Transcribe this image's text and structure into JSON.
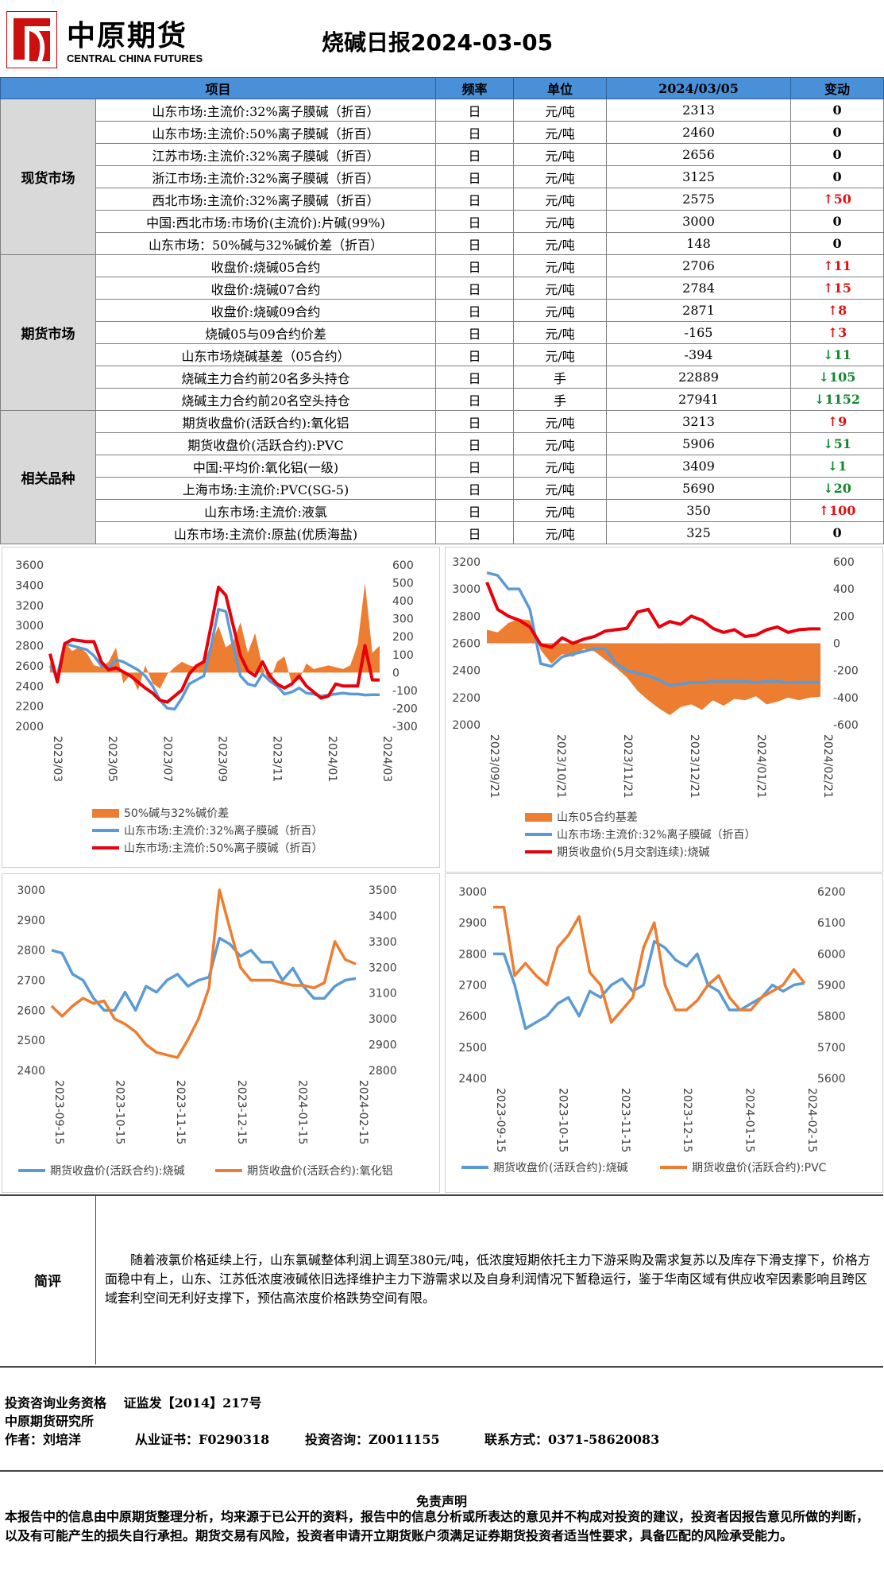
{
  "header": {
    "logo_cn": "中原期货",
    "logo_en": "CENTRAL CHINA FUTURES",
    "title": "烧碱日报2024-03-05"
  },
  "table": {
    "columns": [
      "项目",
      "频率",
      "单位",
      "2024/03/05",
      "变动"
    ],
    "sections": [
      {
        "name": "现货市场",
        "rows": [
          {
            "item": "山东市场:主流价:32%离子膜碱（折百）",
            "freq": "日",
            "unit": "元/吨",
            "value": "2313",
            "change": "0",
            "dir": "zero"
          },
          {
            "item": "山东市场:主流价:50%离子膜碱（折百）",
            "freq": "日",
            "unit": "元/吨",
            "value": "2460",
            "change": "0",
            "dir": "zero"
          },
          {
            "item": "江苏市场:主流价:32%离子膜碱（折百）",
            "freq": "日",
            "unit": "元/吨",
            "value": "2656",
            "change": "0",
            "dir": "zero"
          },
          {
            "item": "浙江市场:主流价:32%离子膜碱（折百）",
            "freq": "日",
            "unit": "元/吨",
            "value": "3125",
            "change": "0",
            "dir": "zero"
          },
          {
            "item": "西北市场:主流价:32%离子膜碱（折百）",
            "freq": "日",
            "unit": "元/吨",
            "value": "2575",
            "change": "↑50",
            "dir": "up"
          },
          {
            "item": "中国:西北市场:市场价(主流价):片碱(99%)",
            "freq": "日",
            "unit": "元/吨",
            "value": "3000",
            "change": "0",
            "dir": "zero"
          },
          {
            "item": "山东市场：50%碱与32%碱价差（折百）",
            "freq": "日",
            "unit": "元/吨",
            "value": "148",
            "change": "0",
            "dir": "zero"
          }
        ]
      },
      {
        "name": "期货市场",
        "rows": [
          {
            "item": "收盘价:烧碱05合约",
            "freq": "日",
            "unit": "元/吨",
            "value": "2706",
            "change": "↑11",
            "dir": "up"
          },
          {
            "item": "收盘价:烧碱07合约",
            "freq": "日",
            "unit": "元/吨",
            "value": "2784",
            "change": "↑15",
            "dir": "up"
          },
          {
            "item": "收盘价:烧碱09合约",
            "freq": "日",
            "unit": "元/吨",
            "value": "2871",
            "change": "↑8",
            "dir": "up"
          },
          {
            "item": "烧碱05与09合约价差",
            "freq": "日",
            "unit": "元/吨",
            "value": "-165",
            "change": "↑3",
            "dir": "up"
          },
          {
            "item": "山东市场烧碱基差（05合约）",
            "freq": "日",
            "unit": "元/吨",
            "value": "-394",
            "change": "↓11",
            "dir": "down"
          },
          {
            "item": "烧碱主力合约前20名多头持仓",
            "freq": "日",
            "unit": "手",
            "value": "22889",
            "change": "↓105",
            "dir": "down"
          },
          {
            "item": "烧碱主力合约前20名空头持仓",
            "freq": "日",
            "unit": "手",
            "value": "27941",
            "change": "↓1152",
            "dir": "down"
          }
        ]
      },
      {
        "name": "相关品种",
        "rows": [
          {
            "item": "期货收盘价(活跃合约):氧化铝",
            "freq": "日",
            "unit": "元/吨",
            "value": "3213",
            "change": "↑9",
            "dir": "up"
          },
          {
            "item": "期货收盘价(活跃合约):PVC",
            "freq": "日",
            "unit": "元/吨",
            "value": "5906",
            "change": "↓51",
            "dir": "down"
          },
          {
            "item": "中国:平均价:氧化铝(一级)",
            "freq": "日",
            "unit": "元/吨",
            "value": "3409",
            "change": "↓1",
            "dir": "down"
          },
          {
            "item": "上海市场:主流价:PVC(SG-5)",
            "freq": "日",
            "unit": "元/吨",
            "value": "5690",
            "change": "↓20",
            "dir": "down"
          },
          {
            "item": "山东市场:主流价:液氯",
            "freq": "日",
            "unit": "元/吨",
            "value": "350",
            "change": "↑100",
            "dir": "up"
          },
          {
            "item": "山东市场:主流价:原盐(优质海盐)",
            "freq": "日",
            "unit": "元/吨",
            "value": "325",
            "change": "0",
            "dir": "zero"
          }
        ]
      }
    ]
  },
  "colors": {
    "orange": "#ed7d31",
    "blue": "#5b9bd5",
    "red": "#e8000b",
    "up": "#e01010",
    "down": "#13882e",
    "header_blue": "#4a90d9"
  },
  "chart_data": [
    {
      "type": "area",
      "x_ticks": [
        "2023/03",
        "2023/05",
        "2023/07",
        "2023/09",
        "2023/11",
        "2024/01",
        "2024/03"
      ],
      "y_left": {
        "lim": [
          2000,
          3600
        ],
        "ticks": [
          "3600",
          "3400",
          "3200",
          "3000",
          "2800",
          "2600",
          "2400",
          "2200",
          "2000"
        ]
      },
      "y_right": {
        "lim": [
          -300,
          600
        ],
        "ticks": [
          "600",
          "500",
          "400",
          "300",
          "200",
          "100",
          "0",
          "-100",
          "-200",
          "-300"
        ]
      },
      "series": [
        {
          "name": "50%碱与32%碱价差",
          "type": "area",
          "axis": "right",
          "color": "#ed7d31",
          "values": [
            60,
            -30,
            170,
            120,
            140,
            110,
            40,
            30,
            60,
            140,
            -60,
            -10,
            -100,
            40,
            -60,
            -90,
            -10,
            30,
            60,
            40,
            30,
            60,
            160,
            260,
            140,
            170,
            280,
            110,
            220,
            30,
            -50,
            60,
            90,
            -60,
            -40,
            50,
            20,
            30,
            40,
            30,
            20,
            40,
            160,
            500,
            110,
            150
          ]
        },
        {
          "name": "山东市场:主流价:32%离子膜碱（折百）",
          "type": "line",
          "axis": "left",
          "color": "#5b9bd5",
          "values": [
            2600,
            2500,
            2820,
            2800,
            2780,
            2760,
            2700,
            2600,
            2580,
            2660,
            2640,
            2600,
            2560,
            2500,
            2400,
            2260,
            2180,
            2170,
            2280,
            2420,
            2460,
            2500,
            2800,
            3160,
            3140,
            2800,
            2500,
            2420,
            2400,
            2520,
            2450,
            2400,
            2320,
            2340,
            2380,
            2330,
            2320,
            2300,
            2310,
            2320,
            2330,
            2320,
            2320,
            2310,
            2313,
            2313
          ]
        },
        {
          "name": "山东市场:主流价:50%离子膜碱（折百）",
          "type": "line",
          "axis": "left",
          "color": "#e8000b",
          "values": [
            2720,
            2440,
            2820,
            2860,
            2850,
            2840,
            2840,
            2640,
            2560,
            2580,
            2540,
            2500,
            2440,
            2380,
            2330,
            2260,
            2240,
            2300,
            2360,
            2520,
            2600,
            2640,
            3000,
            3380,
            3300,
            3000,
            2700,
            2550,
            2500,
            2640,
            2500,
            2420,
            2380,
            2420,
            2500,
            2400,
            2340,
            2280,
            2300,
            2420,
            2400,
            2400,
            2400,
            2800,
            2460,
            2460
          ]
        }
      ]
    },
    {
      "type": "area",
      "x_ticks": [
        "2023/09/21",
        "2023/10/21",
        "2023/11/21",
        "2023/12/21",
        "2024/01/21",
        "2024/02/21"
      ],
      "y_left": {
        "lim": [
          2000,
          3200
        ],
        "ticks": [
          "3200",
          "3000",
          "2800",
          "2600",
          "2400",
          "2200",
          "2000"
        ]
      },
      "y_right": {
        "lim": [
          -600,
          600
        ],
        "ticks": [
          "600",
          "400",
          "200",
          "0",
          "-200",
          "-400",
          "-600"
        ]
      },
      "series": [
        {
          "name": "山东05合约基差",
          "type": "area",
          "axis": "right",
          "color": "#ed7d31",
          "values": [
            100,
            80,
            150,
            180,
            170,
            -50,
            -150,
            -80,
            -100,
            -40,
            -60,
            -120,
            -180,
            -250,
            -350,
            -420,
            -480,
            -530,
            -470,
            -450,
            -490,
            -420,
            -460,
            -410,
            -420,
            -390,
            -450,
            -430,
            -400,
            -420,
            -400,
            -394
          ]
        },
        {
          "name": "山东市场:主流价:32%离子膜碱（折百）",
          "type": "line",
          "axis": "left",
          "color": "#5b9bd5",
          "values": [
            3120,
            3100,
            3000,
            3000,
            2850,
            2450,
            2430,
            2500,
            2520,
            2540,
            2560,
            2560,
            2450,
            2400,
            2380,
            2360,
            2330,
            2290,
            2300,
            2310,
            2310,
            2320,
            2320,
            2320,
            2320,
            2310,
            2320,
            2320,
            2310,
            2313,
            2313,
            2313
          ]
        },
        {
          "name": "期货收盘价(5月交割连续):烧碱",
          "type": "line",
          "axis": "left",
          "color": "#e8000b",
          "values": [
            3050,
            2850,
            2800,
            2770,
            2720,
            2590,
            2570,
            2640,
            2600,
            2630,
            2650,
            2690,
            2700,
            2710,
            2830,
            2850,
            2720,
            2760,
            2740,
            2800,
            2770,
            2710,
            2680,
            2700,
            2650,
            2660,
            2700,
            2720,
            2680,
            2700,
            2706,
            2706
          ]
        }
      ]
    },
    {
      "type": "line",
      "x_ticks": [
        "2023-09-15",
        "2023-10-15",
        "2023-11-15",
        "2023-12-15",
        "2024-01-15",
        "2024-02-15"
      ],
      "y_left": {
        "lim": [
          2400,
          3000
        ],
        "ticks": [
          "3000",
          "2900",
          "2800",
          "2700",
          "2600",
          "2500",
          "2400"
        ]
      },
      "y_right": {
        "lim": [
          2800,
          3500
        ],
        "ticks": [
          "3500",
          "3400",
          "3300",
          "3200",
          "3100",
          "3000",
          "2900",
          "2800"
        ]
      },
      "series": [
        {
          "name": "期货收盘价(活跃合约):烧碱",
          "type": "line",
          "axis": "left",
          "color": "#5b9bd5",
          "values": [
            2800,
            2790,
            2720,
            2700,
            2640,
            2600,
            2600,
            2660,
            2600,
            2680,
            2660,
            2700,
            2720,
            2680,
            2700,
            2710,
            2840,
            2820,
            2780,
            2800,
            2760,
            2760,
            2700,
            2740,
            2680,
            2640,
            2640,
            2680,
            2700,
            2706
          ]
        },
        {
          "name": "期货收盘价(活跃合约):氧化铝",
          "type": "line",
          "axis": "right",
          "color": "#ed7d31",
          "values": [
            3050,
            3010,
            3050,
            3080,
            3060,
            3070,
            3000,
            2980,
            2950,
            2900,
            2870,
            2860,
            2850,
            2920,
            3000,
            3120,
            3500,
            3350,
            3200,
            3150,
            3150,
            3150,
            3140,
            3130,
            3130,
            3120,
            3140,
            3300,
            3230,
            3213
          ]
        }
      ]
    },
    {
      "type": "line",
      "x_ticks": [
        "2023-09-15",
        "2023-10-15",
        "2023-11-15",
        "2023-12-15",
        "2024-01-15",
        "2024-02-15"
      ],
      "y_left": {
        "lim": [
          2400,
          3000
        ],
        "ticks": [
          "3000",
          "2900",
          "2800",
          "2700",
          "2600",
          "2500",
          "2400"
        ]
      },
      "y_right": {
        "lim": [
          5600,
          6200
        ],
        "ticks": [
          "6200",
          "6100",
          "6000",
          "5900",
          "5800",
          "5700",
          "5600"
        ]
      },
      "series": [
        {
          "name": "期货收盘价(活跃合约):烧碱",
          "type": "line",
          "axis": "left",
          "color": "#5b9bd5",
          "values": [
            2800,
            2800,
            2700,
            2560,
            2580,
            2600,
            2640,
            2660,
            2600,
            2680,
            2660,
            2700,
            2720,
            2680,
            2700,
            2840,
            2820,
            2780,
            2760,
            2800,
            2700,
            2680,
            2620,
            2620,
            2640,
            2660,
            2700,
            2680,
            2700,
            2706
          ]
        },
        {
          "name": "期货收盘价(活跃合约):PVC",
          "type": "line",
          "axis": "right",
          "color": "#ed7d31",
          "values": [
            6150,
            6150,
            5930,
            5970,
            5930,
            5900,
            6020,
            6060,
            6120,
            5940,
            5900,
            5780,
            5820,
            5860,
            6020,
            6100,
            5900,
            5820,
            5820,
            5850,
            5900,
            5930,
            5860,
            5820,
            5820,
            5860,
            5880,
            5900,
            5950,
            5906
          ]
        }
      ]
    }
  ],
  "comment": {
    "label": "简评",
    "text": "随着液氯价格延续上行，山东氯碱整体利润上调至380元/吨，低浓度短期依托主力下游采购及需求复苏以及库存下滑支撑下，价格方面稳中有上，山东、江苏低浓度液碱依旧选择维护主力下游需求以及自身利润情况下暂稳运行，鉴于华南区域有供应收窄因素影响且跨区域套利空间无利好支撑下，预估高浓度价格跌势空间有限。"
  },
  "footer": {
    "qualification": "投资咨询业务资格　 证监发【2014】217号",
    "institute": "中原期货研究所",
    "author": "作者：刘培洋",
    "cert": "从业证书：F0290318",
    "consult": "投资咨询：Z0011155",
    "contact": "联系方式：0371-58620083"
  },
  "disclaimer": {
    "title": "免责声明",
    "text": "本报告中的信息由中原期货整理分析，均来源于已公开的资料，报告中的信息分析或所表达的意见并不构成对投资的建议，投资者因报告意见所做的判断，以及有可能产生的损失自行承担。期货交易有风险，投资者申请开立期货账户须满足证券期货投资者适当性要求，具备匹配的风险承受能力。"
  }
}
